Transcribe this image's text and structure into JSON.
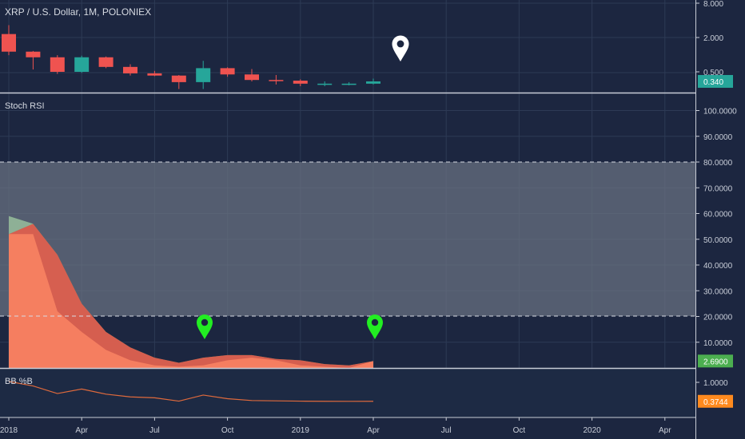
{
  "colors": {
    "background": "#1c2640",
    "grid": "#2d3a55",
    "divider": "#c8ccd6",
    "text": "#c9ced8",
    "up": "#26a69a",
    "down": "#ef5350",
    "band": "#6b7382",
    "stoch_k": "#ef5350",
    "stoch_d": "#ff8a65",
    "stoch_green": "#4caf50",
    "bb": "#e06a3c",
    "marker_white": "#ffffff",
    "marker_green": "#22ee22"
  },
  "header": {
    "title": "XRP / U.S. Dollar, 1M, POLONIEX"
  },
  "stoch_label": "Stoch RSI",
  "bb_label": "BB %B",
  "x_ticks": [
    "2018",
    "Apr",
    "Jul",
    "Oct",
    "2019",
    "Apr",
    "Jul",
    "Oct",
    "2020",
    "Apr"
  ],
  "icons": {
    "white_marker": "map-pin-icon",
    "green_markers": "map-pin-icon"
  },
  "chart_data": [
    {
      "type": "candlestick",
      "title": "XRP / U.S. Dollar, 1M, POLONIEX",
      "y_scale": "log",
      "y_ticks": [
        "8.000",
        "2.000",
        "0.500"
      ],
      "last_value": "0.340",
      "months": [
        "2018-01",
        "2018-02",
        "2018-03",
        "2018-04",
        "2018-05",
        "2018-06",
        "2018-07",
        "2018-08",
        "2018-09",
        "2018-10",
        "2018-11",
        "2018-12",
        "2019-01",
        "2019-02",
        "2019-03",
        "2019-04"
      ],
      "candles": [
        {
          "o": 2.3,
          "h": 3.3,
          "l": 0.98,
          "c": 1.13
        },
        {
          "o": 1.13,
          "h": 1.16,
          "l": 0.55,
          "c": 0.9
        },
        {
          "o": 0.9,
          "h": 0.98,
          "l": 0.46,
          "c": 0.5
        },
        {
          "o": 0.5,
          "h": 0.96,
          "l": 0.48,
          "c": 0.9
        },
        {
          "o": 0.9,
          "h": 0.93,
          "l": 0.58,
          "c": 0.61
        },
        {
          "o": 0.61,
          "h": 0.68,
          "l": 0.43,
          "c": 0.47
        },
        {
          "o": 0.47,
          "h": 0.52,
          "l": 0.42,
          "c": 0.43
        },
        {
          "o": 0.43,
          "h": 0.44,
          "l": 0.25,
          "c": 0.33
        },
        {
          "o": 0.33,
          "h": 0.78,
          "l": 0.25,
          "c": 0.58
        },
        {
          "o": 0.58,
          "h": 0.6,
          "l": 0.41,
          "c": 0.45
        },
        {
          "o": 0.45,
          "h": 0.56,
          "l": 0.34,
          "c": 0.36
        },
        {
          "o": 0.36,
          "h": 0.44,
          "l": 0.3,
          "c": 0.35
        },
        {
          "o": 0.35,
          "h": 0.37,
          "l": 0.28,
          "c": 0.31
        },
        {
          "o": 0.31,
          "h": 0.34,
          "l": 0.28,
          "c": 0.31
        },
        {
          "o": 0.31,
          "h": 0.33,
          "l": 0.29,
          "c": 0.31
        },
        {
          "o": 0.31,
          "h": 0.38,
          "l": 0.3,
          "c": 0.34
        }
      ]
    },
    {
      "type": "area",
      "title": "Stoch RSI",
      "ylim": [
        0,
        100
      ],
      "band": [
        20,
        80
      ],
      "y_ticks": [
        "100.0000",
        "90.0000",
        "80.0000",
        "70.0000",
        "60.0000",
        "50.0000",
        "40.0000",
        "30.0000",
        "20.0000",
        "10.0000"
      ],
      "last_value": "2.6900",
      "x": [
        "2018-01",
        "2018-02",
        "2018-03",
        "2018-04",
        "2018-05",
        "2018-06",
        "2018-07",
        "2018-08",
        "2018-09",
        "2018-10",
        "2018-11",
        "2018-12",
        "2019-01",
        "2019-02",
        "2019-03",
        "2019-04"
      ],
      "series": [
        {
          "values": [
            59,
            52,
            22,
            14,
            7,
            3,
            1,
            0.5,
            1,
            3,
            4,
            3,
            1,
            0.5,
            0,
            2.69
          ]
        },
        {
          "values": [
            52,
            56,
            44,
            25,
            14,
            8,
            4,
            2,
            4,
            5,
            5,
            3.5,
            3,
            1.5,
            1,
            2.69
          ]
        }
      ]
    },
    {
      "type": "line",
      "title": "BB %B",
      "ylim": [
        0,
        1.3
      ],
      "y_ticks": [
        "1.0000"
      ],
      "last_value": "0.3744",
      "x": [
        "2018-01",
        "2018-02",
        "2018-03",
        "2018-04",
        "2018-05",
        "2018-06",
        "2018-07",
        "2018-08",
        "2018-09",
        "2018-10",
        "2018-11",
        "2018-12",
        "2019-01",
        "2019-02",
        "2019-03",
        "2019-04"
      ],
      "values": [
        1.03,
        0.88,
        0.63,
        0.78,
        0.61,
        0.52,
        0.49,
        0.38,
        0.58,
        0.46,
        0.4,
        0.39,
        0.38,
        0.375,
        0.374,
        0.3744
      ]
    }
  ]
}
